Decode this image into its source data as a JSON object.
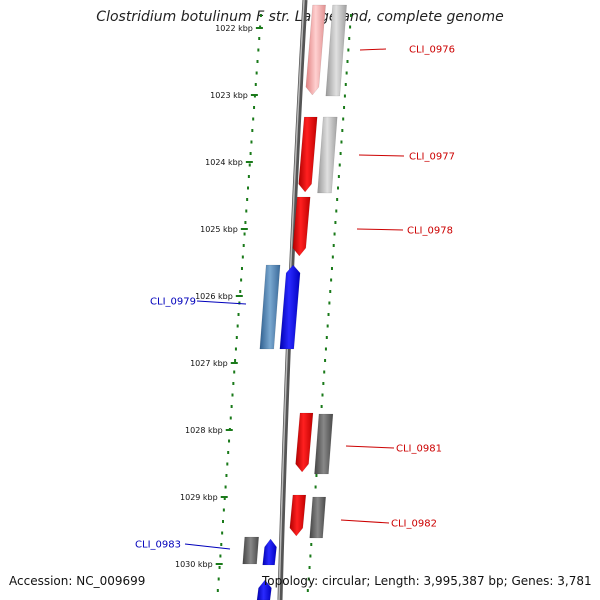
{
  "title": "Clostridium botulinum F str. Langeland, complete genome",
  "accession": "Accession: NC_009699",
  "summary": "Topology: circular; Length: 3,995,387 bp; Genes: 3,781",
  "colors": {
    "forward": "#ff0000",
    "reverse": "#0000ff",
    "forward_label": "#cc0000",
    "reverse_label": "#0000bb",
    "tick": "#1a7a1a",
    "backbone": "#8a8a8a"
  },
  "ticks": [
    {
      "label": "1022 kbp",
      "kbp": 1022
    },
    {
      "label": "1023 kbp",
      "kbp": 1023
    },
    {
      "label": "1024 kbp",
      "kbp": 1024
    },
    {
      "label": "1025 kbp",
      "kbp": 1025
    },
    {
      "label": "1026 kbp",
      "kbp": 1026
    },
    {
      "label": "1027 kbp",
      "kbp": 1027
    },
    {
      "label": "1028 kbp",
      "kbp": 1028
    },
    {
      "label": "1029 kbp",
      "kbp": 1029
    },
    {
      "label": "1030 kbp",
      "kbp": 1030
    }
  ],
  "gene_labels": [
    {
      "name": "CLI_0976",
      "strand": "forward"
    },
    {
      "name": "CLI_0977",
      "strand": "forward"
    },
    {
      "name": "CLI_0978",
      "strand": "forward"
    },
    {
      "name": "CLI_0979",
      "strand": "reverse"
    },
    {
      "name": "CLI_0981",
      "strand": "forward"
    },
    {
      "name": "CLI_0982",
      "strand": "forward"
    },
    {
      "name": "CLI_0983",
      "strand": "reverse"
    }
  ]
}
